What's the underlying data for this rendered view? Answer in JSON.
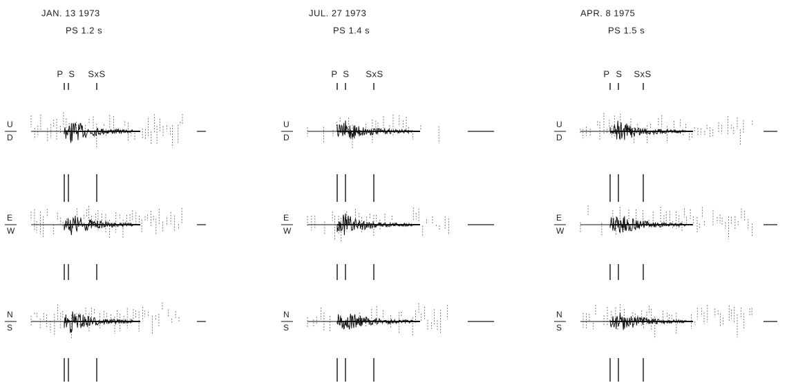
{
  "panels": [
    {
      "date": "JAN. 13  1973",
      "ps": "PS 1.2 s",
      "phases": [
        "P",
        "S",
        "SxS"
      ],
      "components": [
        {
          "top": "U",
          "bottom": "D"
        },
        {
          "top": "E",
          "bottom": "W"
        },
        {
          "top": "N",
          "bottom": "S"
        }
      ]
    },
    {
      "date": "JUL. 27  1973",
      "ps": "PS  1.4 s",
      "phases": [
        "P",
        "S",
        "SxS"
      ],
      "components": [
        {
          "top": "U",
          "bottom": "D"
        },
        {
          "top": "E",
          "bottom": "W"
        },
        {
          "top": "N",
          "bottom": "S"
        }
      ]
    },
    {
      "date": "APR. 8  1975",
      "ps": "PS  1.5 s",
      "phases": [
        "P",
        "S",
        "SxS"
      ],
      "components": [
        {
          "top": "U",
          "bottom": "D"
        },
        {
          "top": "E",
          "bottom": "W"
        },
        {
          "top": "N",
          "bottom": "S"
        }
      ]
    }
  ]
}
